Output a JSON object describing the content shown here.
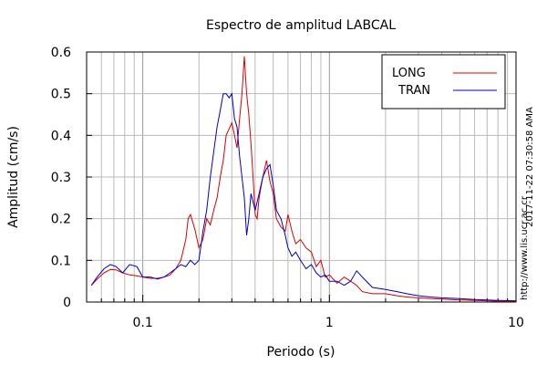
{
  "chart_data": {
    "type": "line",
    "title": "Espectro de amplitud LABCAL",
    "xlabel": "Periodo (s)",
    "ylabel": "Amplitud (cm/s)",
    "x_scale": "log",
    "xlim": [
      0.05,
      10
    ],
    "ylim": [
      0,
      0.6
    ],
    "grid": true,
    "legend_position": "top-right",
    "x_tick_labels": [
      "0.1",
      "1",
      "10"
    ],
    "x_tick_values": [
      0.1,
      1,
      10
    ],
    "y_tick_labels": [
      "0",
      "0.1",
      "0.2",
      "0.3",
      "0.4",
      "0.5",
      "0.6"
    ],
    "y_tick_values": [
      0,
      0.1,
      0.2,
      0.3,
      0.4,
      0.5,
      0.6
    ],
    "side_labels": [
      "2017-11-22 07:30:58 AMA",
      "http://www.lis.ucr.ac.cr"
    ],
    "series": [
      {
        "name": "LONG",
        "color": "#dd0000",
        "x": [
          0.053,
          0.057,
          0.062,
          0.067,
          0.072,
          0.078,
          0.085,
          0.093,
          0.1,
          0.11,
          0.12,
          0.13,
          0.14,
          0.15,
          0.16,
          0.17,
          0.175,
          0.18,
          0.19,
          0.2,
          0.21,
          0.22,
          0.23,
          0.24,
          0.25,
          0.26,
          0.27,
          0.28,
          0.3,
          0.31,
          0.32,
          0.33,
          0.34,
          0.35,
          0.36,
          0.37,
          0.38,
          0.39,
          0.4,
          0.41,
          0.42,
          0.44,
          0.46,
          0.48,
          0.5,
          0.52,
          0.55,
          0.58,
          0.6,
          0.63,
          0.66,
          0.7,
          0.75,
          0.8,
          0.85,
          0.9,
          0.95,
          1.0,
          1.1,
          1.2,
          1.3,
          1.4,
          1.5,
          1.7,
          2.0,
          2.3,
          2.6,
          3.0,
          3.5,
          4.0,
          5.0,
          6.0,
          7.0,
          8.0,
          10.0
        ],
        "y": [
          0.04,
          0.055,
          0.07,
          0.078,
          0.077,
          0.07,
          0.065,
          0.063,
          0.06,
          0.057,
          0.057,
          0.06,
          0.065,
          0.08,
          0.1,
          0.15,
          0.2,
          0.21,
          0.175,
          0.13,
          0.15,
          0.2,
          0.185,
          0.22,
          0.25,
          0.3,
          0.34,
          0.4,
          0.43,
          0.4,
          0.37,
          0.44,
          0.5,
          0.59,
          0.5,
          0.45,
          0.38,
          0.3,
          0.21,
          0.2,
          0.25,
          0.3,
          0.34,
          0.29,
          0.26,
          0.2,
          0.18,
          0.17,
          0.21,
          0.17,
          0.14,
          0.15,
          0.13,
          0.12,
          0.085,
          0.1,
          0.06,
          0.065,
          0.045,
          0.06,
          0.05,
          0.04,
          0.025,
          0.02,
          0.02,
          0.015,
          0.012,
          0.01,
          0.008,
          0.007,
          0.005,
          0.004,
          0.003,
          0.002,
          0.002
        ]
      },
      {
        "name": "TRAN",
        "color": "#0000cc",
        "x": [
          0.053,
          0.057,
          0.062,
          0.067,
          0.072,
          0.078,
          0.085,
          0.093,
          0.1,
          0.11,
          0.12,
          0.13,
          0.14,
          0.15,
          0.16,
          0.17,
          0.18,
          0.19,
          0.2,
          0.21,
          0.22,
          0.23,
          0.24,
          0.25,
          0.26,
          0.27,
          0.28,
          0.29,
          0.3,
          0.31,
          0.32,
          0.33,
          0.34,
          0.35,
          0.36,
          0.37,
          0.38,
          0.39,
          0.4,
          0.42,
          0.44,
          0.46,
          0.48,
          0.5,
          0.52,
          0.55,
          0.58,
          0.6,
          0.63,
          0.66,
          0.7,
          0.75,
          0.8,
          0.85,
          0.9,
          0.95,
          1.0,
          1.1,
          1.2,
          1.3,
          1.4,
          1.5,
          1.7,
          2.0,
          2.3,
          2.6,
          3.0,
          3.5,
          4.0,
          5.0,
          6.0,
          7.0,
          8.0,
          10.0
        ],
        "y": [
          0.04,
          0.06,
          0.08,
          0.09,
          0.085,
          0.07,
          0.09,
          0.085,
          0.06,
          0.06,
          0.055,
          0.06,
          0.07,
          0.08,
          0.09,
          0.085,
          0.1,
          0.09,
          0.1,
          0.17,
          0.22,
          0.3,
          0.36,
          0.42,
          0.46,
          0.5,
          0.5,
          0.49,
          0.5,
          0.44,
          0.42,
          0.35,
          0.3,
          0.25,
          0.16,
          0.2,
          0.26,
          0.24,
          0.22,
          0.26,
          0.3,
          0.32,
          0.33,
          0.28,
          0.22,
          0.2,
          0.16,
          0.13,
          0.11,
          0.12,
          0.1,
          0.08,
          0.09,
          0.07,
          0.06,
          0.065,
          0.05,
          0.05,
          0.04,
          0.05,
          0.075,
          0.06,
          0.035,
          0.03,
          0.025,
          0.02,
          0.015,
          0.012,
          0.01,
          0.008,
          0.006,
          0.005,
          0.004,
          0.003
        ]
      }
    ]
  }
}
